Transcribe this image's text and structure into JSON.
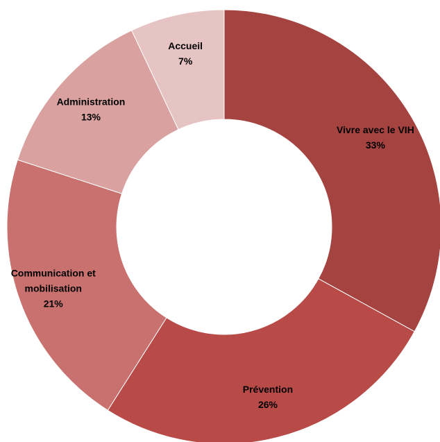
{
  "chart_data": {
    "type": "pie",
    "donut": true,
    "categories": [
      "Vivre avec le VIH",
      "Prévention",
      "Communication et mobilisation",
      "Administration",
      "Accueil"
    ],
    "values": [
      33,
      26,
      21,
      13,
      7
    ],
    "percent_labels": [
      "33%",
      "26%",
      "21%",
      "13%",
      "7%"
    ],
    "label_lines": [
      [
        "Vivre avec le VIH"
      ],
      [
        "Prévention"
      ],
      [
        "Communication et",
        "mobilisation"
      ],
      [
        "Administration"
      ],
      [
        "Accueil"
      ]
    ],
    "colors": [
      "#A54341",
      "#B84A48",
      "#C8716F",
      "#D9A2A1",
      "#E6C4C3"
    ],
    "title": "",
    "legend": "none"
  }
}
